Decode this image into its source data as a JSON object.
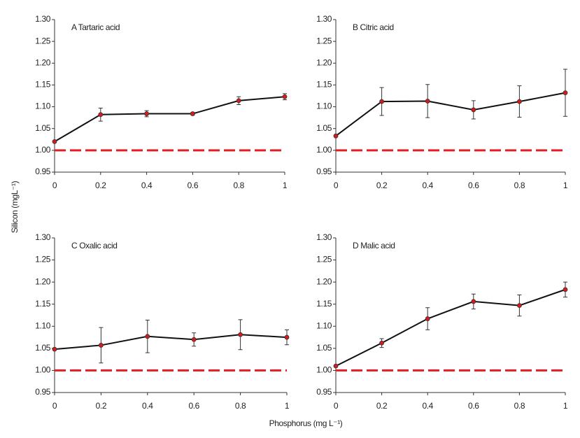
{
  "y_label": "Silicon (mgL⁻¹)",
  "x_label": "Phosphorus (mg L⁻¹)",
  "chart_data": [
    {
      "type": "line",
      "title": "A Tartaric acid",
      "x": [
        0,
        0.2,
        0.4,
        0.6,
        0.8,
        1
      ],
      "series": [
        {
          "color": "#111111",
          "marker_color": "#d7191c",
          "values": [
            1.02,
            1.082,
            1.084,
            1.084,
            1.114,
            1.123
          ],
          "errors": [
            0,
            0.015,
            0.007,
            0.003,
            0.009,
            0.007
          ]
        },
        {
          "color": "#e31e24",
          "dashed": true,
          "values": [
            1,
            1,
            1,
            1,
            1,
            1
          ]
        }
      ],
      "xlim": [
        0,
        1
      ],
      "xticks": [
        0,
        0.2,
        0.4,
        0.6,
        0.8,
        1
      ],
      "ylim": [
        0.95,
        1.3
      ],
      "yticks": [
        0.95,
        {
          "value": 1,
          "label": "1.00"
        },
        1.05,
        {
          "value": 1.1,
          "label": "1.10"
        },
        1.15,
        {
          "value": 1.2,
          "label": "1.20"
        },
        1.25,
        {
          "value": 1.3,
          "label": "1.30"
        }
      ]
    },
    {
      "type": "line",
      "title": "B Citric acid",
      "x": [
        0,
        0.2,
        0.4,
        0.6,
        0.8,
        1
      ],
      "series": [
        {
          "color": "#111111",
          "marker_color": "#d7191c",
          "values": [
            1.033,
            1.112,
            1.113,
            1.093,
            1.112,
            1.132
          ],
          "errors": [
            0,
            0.032,
            0.038,
            0.021,
            0.036,
            0.054
          ]
        },
        {
          "color": "#e31e24",
          "dashed": true,
          "values": [
            1,
            1,
            1,
            1,
            1,
            1
          ]
        }
      ],
      "xlim": [
        0,
        1
      ],
      "xticks": [
        0,
        0.2,
        0.4,
        0.6,
        0.8,
        1
      ],
      "ylim": [
        0.95,
        1.3
      ],
      "yticks": [
        0.95,
        {
          "value": 1,
          "label": "1.00"
        },
        1.05,
        {
          "value": 1.1,
          "label": "1.10"
        },
        1.15,
        {
          "value": 1.2,
          "label": "1.20"
        },
        1.25,
        {
          "value": 1.3,
          "label": "1.30"
        }
      ]
    },
    {
      "type": "line",
      "title": "C Oxalic acid",
      "x": [
        0,
        0.2,
        0.4,
        0.6,
        0.8,
        1
      ],
      "series": [
        {
          "color": "#111111",
          "marker_color": "#d7191c",
          "values": [
            1.048,
            1.057,
            1.077,
            1.07,
            1.081,
            1.075
          ],
          "errors": [
            0,
            0.04,
            0.037,
            0.015,
            0.034,
            0.017
          ]
        },
        {
          "color": "#e31e24",
          "dashed": true,
          "values": [
            1,
            1,
            1,
            1,
            1,
            1
          ]
        }
      ],
      "xlim": [
        0,
        1
      ],
      "xticks": [
        0,
        0.2,
        0.4,
        0.6,
        0.8,
        1
      ],
      "ylim": [
        0.95,
        1.3
      ],
      "yticks": [
        0.95,
        {
          "value": 1,
          "label": "1.00"
        },
        1.05,
        {
          "value": 1.1,
          "label": "1.10"
        },
        1.15,
        {
          "value": 1.2,
          "label": "1.20"
        },
        1.25,
        {
          "value": 1.3,
          "label": "1.30"
        }
      ]
    },
    {
      "type": "line",
      "title": "D Malic acid",
      "x": [
        0,
        0.2,
        0.4,
        0.6,
        0.8,
        1
      ],
      "series": [
        {
          "color": "#111111",
          "marker_color": "#d7191c",
          "values": [
            1.01,
            1.062,
            1.117,
            1.156,
            1.147,
            1.183
          ],
          "errors": [
            0,
            0.01,
            0.025,
            0.017,
            0.024,
            0.017
          ]
        },
        {
          "color": "#e31e24",
          "dashed": true,
          "values": [
            1,
            1,
            1,
            1,
            1,
            1
          ]
        }
      ],
      "xlim": [
        0,
        1
      ],
      "xticks": [
        0,
        0.2,
        0.4,
        0.6,
        0.8,
        1
      ],
      "ylim": [
        0.95,
        1.3
      ],
      "yticks": [
        0.95,
        {
          "value": 1,
          "label": "1.00"
        },
        1.05,
        {
          "value": 1.1,
          "label": "1.10"
        },
        1.15,
        {
          "value": 1.2,
          "label": "1.20"
        },
        1.25,
        {
          "value": 1.3,
          "label": "1.30"
        }
      ]
    }
  ]
}
